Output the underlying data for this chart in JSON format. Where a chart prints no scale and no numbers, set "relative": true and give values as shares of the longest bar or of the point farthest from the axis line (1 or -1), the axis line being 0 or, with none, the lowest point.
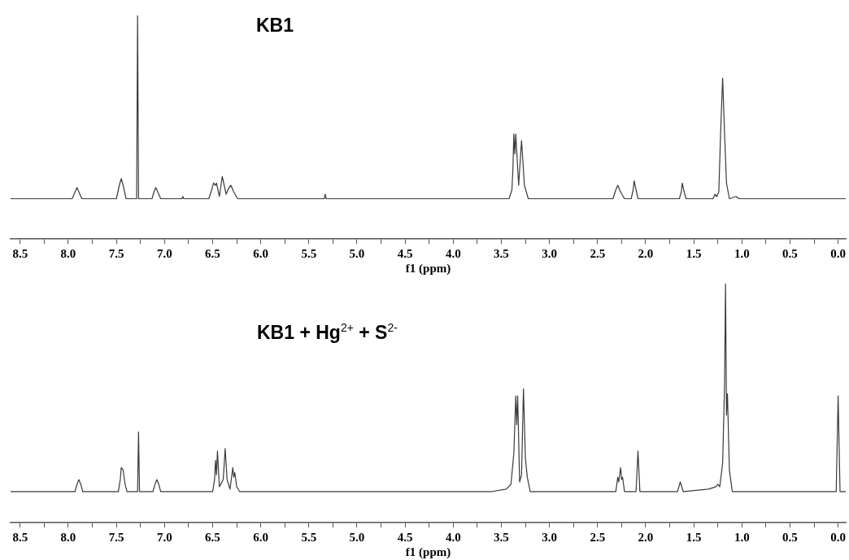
{
  "chart_data": [
    {
      "type": "line",
      "title": "KB1",
      "xlabel": "f1 (ppm)",
      "relative": true,
      "xlim": [
        8.6,
        -0.08
      ],
      "xticks": [
        {
          "value": 8.5,
          "label": "8.5"
        },
        {
          "value": 8.25,
          "label": null
        },
        {
          "value": 8,
          "label": "8.0"
        },
        {
          "value": 7.75,
          "label": null
        },
        {
          "value": 7.5,
          "label": "7.5"
        },
        {
          "value": 7.25,
          "label": null
        },
        {
          "value": 7,
          "label": "7.0"
        },
        {
          "value": 6.75,
          "label": null
        },
        {
          "value": 6.5,
          "label": "6.5"
        },
        {
          "value": 6.25,
          "label": null
        },
        {
          "value": 6,
          "label": "6.0"
        },
        {
          "value": 5.75,
          "label": null
        },
        {
          "value": 5.5,
          "label": "5.5"
        },
        {
          "value": 5.25,
          "label": null
        },
        {
          "value": 5,
          "label": "5.0"
        },
        {
          "value": 4.75,
          "label": null
        },
        {
          "value": 4.5,
          "label": "4.5"
        },
        {
          "value": 4.25,
          "label": null
        },
        {
          "value": 4,
          "label": "4.0"
        },
        {
          "value": 3.75,
          "label": null
        },
        {
          "value": 3.5,
          "label": "3.5"
        },
        {
          "value": 3.25,
          "label": null
        },
        {
          "value": 3,
          "label": "3.0"
        },
        {
          "value": 2.75,
          "label": null
        },
        {
          "value": 2.5,
          "label": "2.5"
        },
        {
          "value": 2.25,
          "label": null
        },
        {
          "value": 2,
          "label": "2.0"
        },
        {
          "value": 1.75,
          "label": null
        },
        {
          "value": 1.5,
          "label": "1.5"
        },
        {
          "value": 1.25,
          "label": null
        },
        {
          "value": 1,
          "label": "1.0"
        },
        {
          "value": 0.75,
          "label": null
        },
        {
          "value": 0.5,
          "label": "0.5"
        },
        {
          "value": 0.25,
          "label": null
        },
        {
          "value": 0,
          "label": "0.0"
        }
      ],
      "grid": false,
      "legend": false,
      "marker": "none",
      "line_style": "solid",
      "tick_labels": "x",
      "series": [
        {
          "type": "line",
          "color": "#3a3a3a",
          "x": [
            8.6,
            7.96,
            7.93,
            7.91,
            7.89,
            7.86,
            7.5,
            7.47,
            7.45,
            7.43,
            7.4,
            7.29,
            7.28,
            7.27,
            7.13,
            7.11,
            7.09,
            7.07,
            7.04,
            6.82,
            6.81,
            6.8,
            6.54,
            6.51,
            6.49,
            6.47,
            6.46,
            6.43,
            6.4,
            6.36,
            6.33,
            6.31,
            6.28,
            6.24,
            5.34,
            5.33,
            5.32,
            3.42,
            3.39,
            3.38,
            3.37,
            3.36,
            3.35,
            3.32,
            3.29,
            3.26,
            3.22,
            2.34,
            2.31,
            2.29,
            2.26,
            2.22,
            2.15,
            2.13,
            2.12,
            2.1,
            2.08,
            1.65,
            1.63,
            1.62,
            1.6,
            1.58,
            1.3,
            1.28,
            1.26,
            1.24,
            1.22,
            1.2,
            1.18,
            1.16,
            1.13,
            1.06,
            1.03,
            -0.08
          ],
          "values": [
            0.18,
            0.18,
            0.21,
            0.23,
            0.21,
            0.18,
            0.18,
            0.24,
            0.27,
            0.24,
            0.18,
            0.18,
            1.0,
            0.18,
            0.18,
            0.21,
            0.23,
            0.21,
            0.18,
            0.18,
            0.19,
            0.18,
            0.18,
            0.22,
            0.25,
            0.24,
            0.25,
            0.19,
            0.28,
            0.2,
            0.23,
            0.24,
            0.21,
            0.18,
            0.18,
            0.2,
            0.18,
            0.18,
            0.22,
            0.31,
            0.47,
            0.38,
            0.47,
            0.24,
            0.44,
            0.24,
            0.18,
            0.18,
            0.22,
            0.24,
            0.21,
            0.18,
            0.18,
            0.22,
            0.26,
            0.22,
            0.18,
            0.18,
            0.21,
            0.25,
            0.21,
            0.18,
            0.18,
            0.2,
            0.19,
            0.21,
            0.49,
            0.72,
            0.47,
            0.25,
            0.18,
            0.19,
            0.18,
            0.18
          ]
        }
      ]
    },
    {
      "type": "line",
      "title": "KB1 + Hg$^{2+}$ + S$^{2-}$",
      "xlabel": "f1 (ppm)",
      "relative": true,
      "xlim": [
        8.6,
        -0.08
      ],
      "xticks": [
        {
          "value": 8.5,
          "label": "8.5"
        },
        {
          "value": 8.25,
          "label": null
        },
        {
          "value": 8,
          "label": "8.0"
        },
        {
          "value": 7.75,
          "label": null
        },
        {
          "value": 7.5,
          "label": "7.5"
        },
        {
          "value": 7.25,
          "label": null
        },
        {
          "value": 7,
          "label": "7.0"
        },
        {
          "value": 6.75,
          "label": null
        },
        {
          "value": 6.5,
          "label": "6.5"
        },
        {
          "value": 6.25,
          "label": null
        },
        {
          "value": 6,
          "label": "6.0"
        },
        {
          "value": 5.75,
          "label": null
        },
        {
          "value": 5.5,
          "label": "5.5"
        },
        {
          "value": 5.25,
          "label": null
        },
        {
          "value": 5,
          "label": "5.0"
        },
        {
          "value": 4.75,
          "label": null
        },
        {
          "value": 4.5,
          "label": "4.5"
        },
        {
          "value": 4.25,
          "label": null
        },
        {
          "value": 4,
          "label": "4.0"
        },
        {
          "value": 3.75,
          "label": null
        },
        {
          "value": 3.5,
          "label": "3.5"
        },
        {
          "value": 3.25,
          "label": null
        },
        {
          "value": 3,
          "label": "3.0"
        },
        {
          "value": 2.75,
          "label": null
        },
        {
          "value": 2.5,
          "label": "2.5"
        },
        {
          "value": 2.25,
          "label": null
        },
        {
          "value": 2,
          "label": "2.0"
        },
        {
          "value": 1.75,
          "label": null
        },
        {
          "value": 1.5,
          "label": "1.5"
        },
        {
          "value": 1.25,
          "label": null
        },
        {
          "value": 1,
          "label": "1.0"
        },
        {
          "value": 0.75,
          "label": null
        },
        {
          "value": 0.5,
          "label": "0.5"
        },
        {
          "value": 0.25,
          "label": null
        },
        {
          "value": 0,
          "label": "0.0"
        }
      ],
      "grid": false,
      "legend": false,
      "marker": "none",
      "line_style": "solid",
      "tick_labels": "x",
      "series": [
        {
          "type": "line",
          "color": "#3a3a3a",
          "x": [
            8.6,
            7.93,
            7.91,
            7.89,
            7.87,
            7.85,
            7.48,
            7.46,
            7.45,
            7.43,
            7.41,
            7.39,
            7.28,
            7.27,
            7.26,
            7.12,
            7.1,
            7.08,
            7.06,
            7.04,
            6.5,
            6.48,
            6.47,
            6.46,
            6.45,
            6.43,
            6.39,
            6.37,
            6.35,
            6.32,
            6.29,
            6.28,
            6.27,
            6.25,
            6.22,
            3.6,
            3.45,
            3.4,
            3.37,
            3.35,
            3.34,
            3.33,
            3.31,
            3.29,
            3.27,
            3.25,
            3.23,
            3.2,
            2.31,
            2.29,
            2.28,
            2.26,
            2.25,
            2.24,
            2.22,
            2.1,
            2.08,
            2.06,
            1.67,
            1.64,
            1.61,
            1.35,
            1.27,
            1.25,
            1.23,
            1.2,
            1.18,
            1.17,
            1.16,
            1.15,
            1.13,
            1.1,
            0.02,
            0,
            -0.02,
            -0.08
          ],
          "values": [
            0.13,
            0.13,
            0.16,
            0.18,
            0.16,
            0.13,
            0.13,
            0.18,
            0.23,
            0.22,
            0.16,
            0.13,
            0.13,
            0.38,
            0.13,
            0.13,
            0.16,
            0.18,
            0.16,
            0.13,
            0.13,
            0.18,
            0.26,
            0.2,
            0.3,
            0.15,
            0.18,
            0.31,
            0.18,
            0.14,
            0.23,
            0.19,
            0.21,
            0.15,
            0.13,
            0.13,
            0.14,
            0.16,
            0.29,
            0.53,
            0.41,
            0.53,
            0.17,
            0.2,
            0.56,
            0.27,
            0.19,
            0.13,
            0.13,
            0.19,
            0.17,
            0.23,
            0.18,
            0.19,
            0.13,
            0.13,
            0.3,
            0.13,
            0.13,
            0.17,
            0.13,
            0.14,
            0.15,
            0.16,
            0.15,
            0.25,
            0.58,
            1.0,
            0.45,
            0.54,
            0.22,
            0.13,
            0.13,
            0.53,
            0.13,
            0.13
          ]
        }
      ]
    }
  ]
}
